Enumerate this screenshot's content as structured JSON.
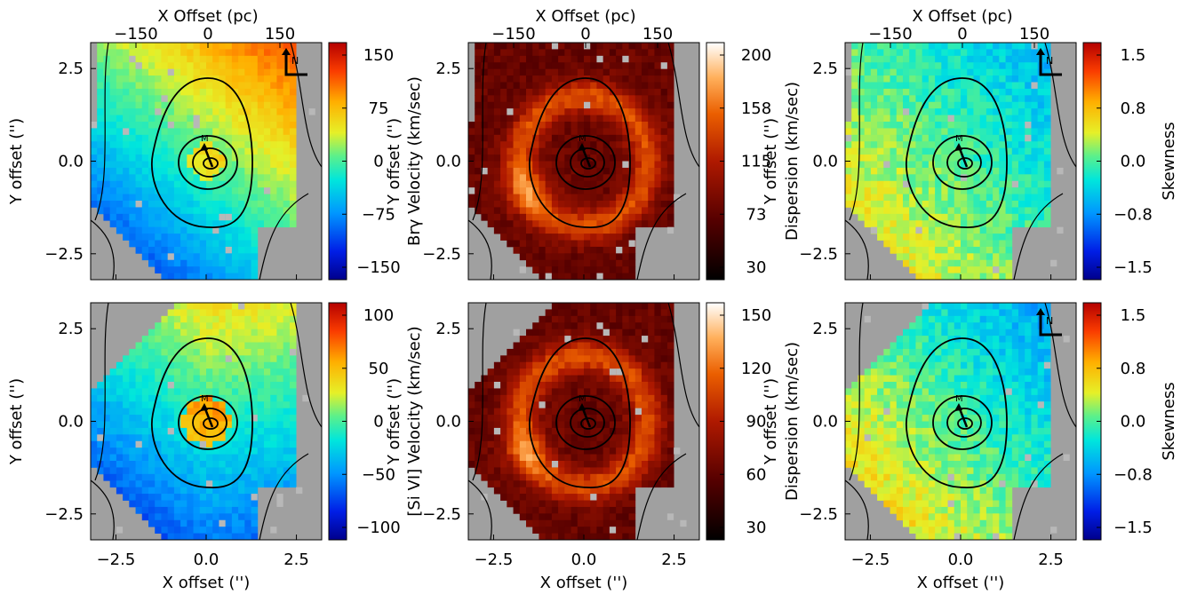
{
  "figure": {
    "top_axis_label": "X Offset (pc)",
    "top_ticks": [
      "−150",
      "0",
      "150"
    ],
    "xlabel": "X offset ('')",
    "ylabel": "Y offset ('')",
    "x_ticks": [
      "−2.5",
      "0.0",
      "2.5"
    ],
    "y_ticks": [
      "2.5",
      "0.0",
      "−2.5"
    ],
    "compass_label": "N",
    "nucleus_label": "M",
    "background_color": "#a0a0a0",
    "contour_color": "#000000"
  },
  "chart_data": [
    {
      "type": "heatmap",
      "row": 1,
      "col": 1,
      "quantity": "Brγ velocity map",
      "colorbar_label": "Brγ Velocity (km/sec)",
      "colormap": "rainbow",
      "colorbar_ticks": [
        "150",
        "75",
        "0",
        "−75",
        "−150"
      ],
      "clim": [
        -150,
        150
      ],
      "xlim": [
        -3.2,
        3.2
      ],
      "ylim": [
        -3.2,
        3.2
      ],
      "show_compass": true
    },
    {
      "type": "heatmap",
      "row": 1,
      "col": 2,
      "quantity": "Brγ dispersion map",
      "colorbar_label": "Dispersion (km/sec)",
      "colormap": "heat",
      "colorbar_ticks": [
        "200",
        "158",
        "115",
        "73",
        "30"
      ],
      "clim": [
        30,
        200
      ],
      "xlim": [
        -3.2,
        3.2
      ],
      "ylim": [
        -3.2,
        3.2
      ],
      "show_compass": false
    },
    {
      "type": "heatmap",
      "row": 1,
      "col": 3,
      "quantity": "Brγ skewness map",
      "colorbar_label": "Skewness",
      "colormap": "rainbow",
      "colorbar_ticks": [
        "1.5",
        "0.8",
        "0.0",
        "−0.8",
        "−1.5"
      ],
      "clim": [
        -1.5,
        1.5
      ],
      "xlim": [
        -3.2,
        3.2
      ],
      "ylim": [
        -3.2,
        3.2
      ],
      "show_compass": true
    },
    {
      "type": "heatmap",
      "row": 2,
      "col": 1,
      "quantity": "[Si VI] velocity map",
      "colorbar_label": "[Si VI] Velocity (km/sec)",
      "colormap": "rainbow",
      "colorbar_ticks": [
        "100",
        "50",
        "0",
        "−50",
        "−100"
      ],
      "clim": [
        -100,
        100
      ],
      "xlim": [
        -3.2,
        3.2
      ],
      "ylim": [
        -3.2,
        3.2
      ],
      "show_compass": false
    },
    {
      "type": "heatmap",
      "row": 2,
      "col": 2,
      "quantity": "[Si VI] dispersion map",
      "colorbar_label": "Dispersion (km/sec)",
      "colormap": "heat",
      "colorbar_ticks": [
        "150",
        "120",
        "90",
        "60",
        "30"
      ],
      "clim": [
        30,
        150
      ],
      "xlim": [
        -3.2,
        3.2
      ],
      "ylim": [
        -3.2,
        3.2
      ],
      "show_compass": false
    },
    {
      "type": "heatmap",
      "row": 2,
      "col": 3,
      "quantity": "[Si VI] skewness map",
      "colorbar_label": "Skewness",
      "colormap": "rainbow",
      "colorbar_ticks": [
        "1.5",
        "0.8",
        "0.0",
        "−0.8",
        "−1.5"
      ],
      "clim": [
        -1.5,
        1.5
      ],
      "xlim": [
        -3.2,
        3.2
      ],
      "ylim": [
        -3.2,
        3.2
      ],
      "show_compass": true
    }
  ]
}
